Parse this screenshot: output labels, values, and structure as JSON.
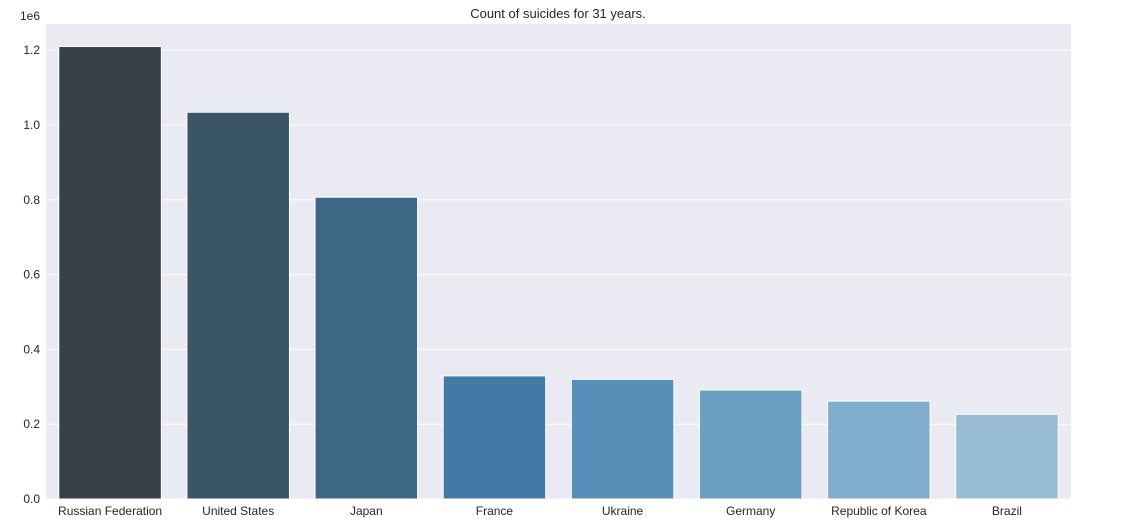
{
  "chart_data": {
    "type": "bar",
    "title": "Count of suicides for 31 years.",
    "xlabel": "",
    "ylabel": "",
    "y_offset_label": "1e6",
    "categories": [
      "Russian Federation",
      "United States",
      "Japan",
      "France",
      "Ukraine",
      "Germany",
      "Republic of Korea",
      "Brazil"
    ],
    "values": [
      1209742,
      1034013,
      806902,
      329127,
      319950,
      291262,
      261730,
      226613
    ],
    "colors": [
      "#354048",
      "#3a5468",
      "#3e6685",
      "#4279a5",
      "#5690b9",
      "#6b9fc4",
      "#82aecd",
      "#98bcd5"
    ],
    "ylim": [
      0,
      1.27
    ],
    "ylim_units": "1e6",
    "yticks": [
      0.0,
      0.2,
      0.4,
      0.6,
      0.8,
      1.0,
      1.2
    ],
    "ytick_labels": [
      "0.0",
      "0.2",
      "0.4",
      "0.6",
      "0.8",
      "1.0",
      "1.2"
    ],
    "grid": true,
    "background": "#eaeaf2",
    "legend": "none"
  }
}
